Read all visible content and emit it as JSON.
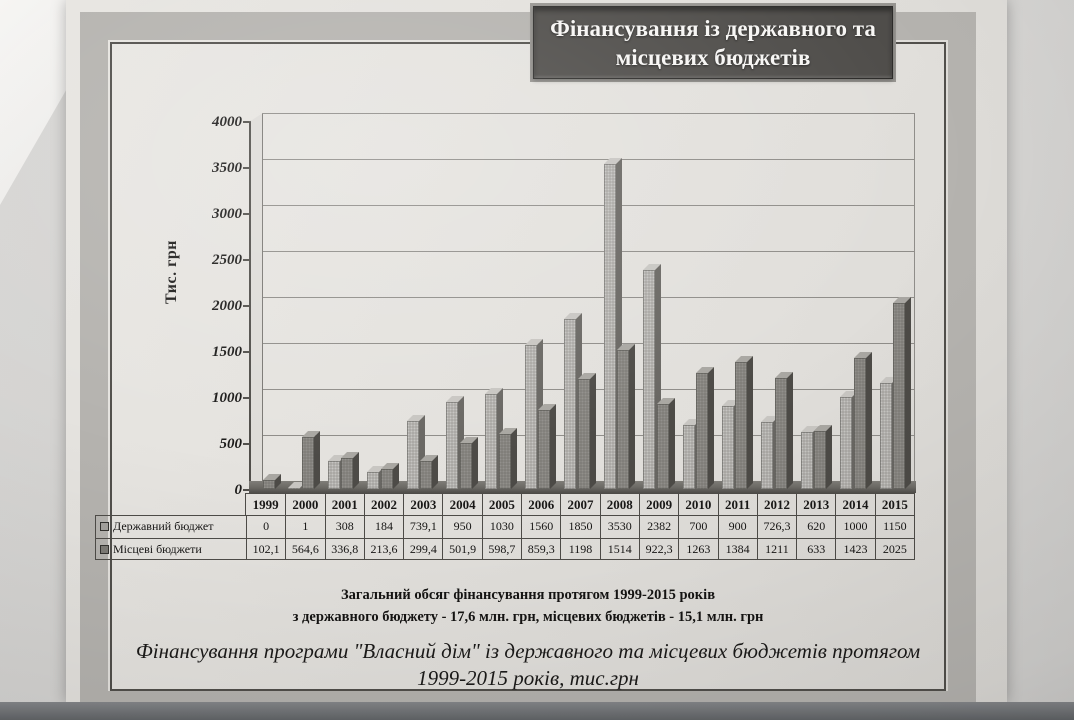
{
  "title_box": {
    "line1": "Фінансування із державного та",
    "line2": "місцевих бюджетів"
  },
  "chart_data": {
    "type": "bar",
    "style": "3d-column",
    "title": "Фінансування із державного та місцевих бюджетів",
    "ylabel": "Тис. грн",
    "ylim": [
      0,
      4000
    ],
    "y_ticks": [
      0,
      500,
      1000,
      1500,
      2000,
      2500,
      3000,
      3500,
      4000
    ],
    "grid": true,
    "legend_position": "data-table-left",
    "categories": [
      "1999",
      "2000",
      "2001",
      "2002",
      "2003",
      "2004",
      "2005",
      "2006",
      "2007",
      "2008",
      "2009",
      "2010",
      "2011",
      "2012",
      "2013",
      "2014",
      "2015"
    ],
    "series": [
      {
        "name": "Державний бюджет",
        "color": "#a3a19d",
        "values": [
          0,
          1,
          308,
          184,
          739.1,
          950,
          1030,
          1560,
          1850,
          3530,
          2382,
          700,
          900,
          726.3,
          620,
          1000,
          1150
        ],
        "display": [
          "0",
          "1",
          "308",
          "184",
          "739,1",
          "950",
          "1030",
          "1560",
          "1850",
          "3530",
          "2382",
          "700",
          "900",
          "726,3",
          "620",
          "1000",
          "1150"
        ]
      },
      {
        "name": "Місцеві бюджети",
        "color": "#7d7b76",
        "values": [
          102.1,
          564.6,
          336.8,
          213.6,
          299.4,
          501.9,
          598.7,
          859.3,
          1198,
          1514,
          922.3,
          1263,
          1384,
          1211,
          633,
          1423,
          2025
        ],
        "display": [
          "102,1",
          "564,6",
          "336,8",
          "213,6",
          "299,4",
          "501,9",
          "598,7",
          "859,3",
          "1198",
          "1514",
          "922,3",
          "1263",
          "1384",
          "1211",
          "633",
          "1423",
          "2025"
        ]
      }
    ]
  },
  "summary": {
    "line1": "Загальний обсяг фінансування протягом 1999-2015 років",
    "line2": "з державного бюджету - 17,6 млн. грн, місцевих бюджетів - 15,1 млн. грн"
  },
  "caption": {
    "line1": "Фінансування програми \"Власний дім\" із державного та місцевих бюджетів протягом",
    "line2": "1999-2015 років, тис.грн"
  }
}
